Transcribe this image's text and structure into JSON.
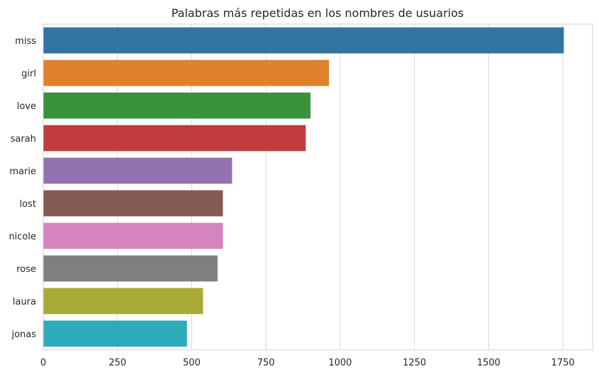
{
  "chart_data": {
    "type": "bar",
    "orientation": "horizontal",
    "title": "Palabras más repetidas en los nombres de usuarios",
    "xlabel": "",
    "ylabel": "",
    "categories": [
      "miss",
      "girl",
      "love",
      "sarah",
      "marie",
      "lost",
      "nicole",
      "rose",
      "laura",
      "jonas"
    ],
    "values": [
      1753,
      962,
      900,
      884,
      636,
      605,
      605,
      587,
      538,
      484
    ],
    "colors": [
      "#3274a1",
      "#e1812c",
      "#3a923a",
      "#c03d3e",
      "#9372b2",
      "#845b53",
      "#d684bd",
      "#7f7f7f",
      "#a9aa35",
      "#2eabb8"
    ],
    "xlim": [
      0,
      1850
    ],
    "xticks": [
      0,
      250,
      500,
      750,
      1000,
      1250,
      1500,
      1750
    ],
    "grid": "vertical"
  }
}
